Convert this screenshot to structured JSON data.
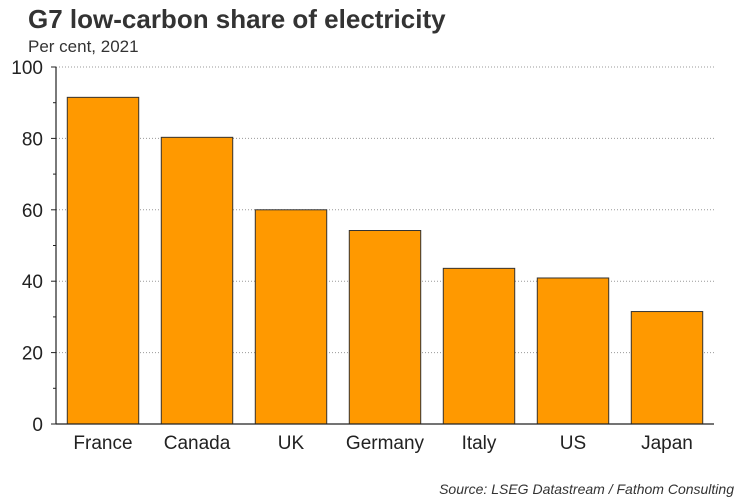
{
  "header": {
    "title": "G7 low-carbon share of electricity",
    "subtitle": "Per cent, 2021"
  },
  "footer": {
    "source": "Source: LSEG Datastream / Fathom Consulting"
  },
  "colors": {
    "bar": "#FF9900",
    "bar_outline": "#333333",
    "grid": "#999999",
    "axis": "#222222"
  },
  "chart_data": {
    "type": "bar",
    "title": "G7 low-carbon share of electricity",
    "subtitle": "Per cent, 2021",
    "xlabel": "",
    "ylabel": "",
    "categories": [
      "France",
      "Canada",
      "UK",
      "Germany",
      "Italy",
      "US",
      "Japan"
    ],
    "values": [
      91.5,
      80.3,
      60.0,
      54.2,
      43.6,
      40.9,
      31.5
    ],
    "ylim": [
      0,
      100
    ],
    "yticks": [
      0,
      20,
      40,
      60,
      80,
      100
    ],
    "grid": true,
    "legend": "none"
  }
}
